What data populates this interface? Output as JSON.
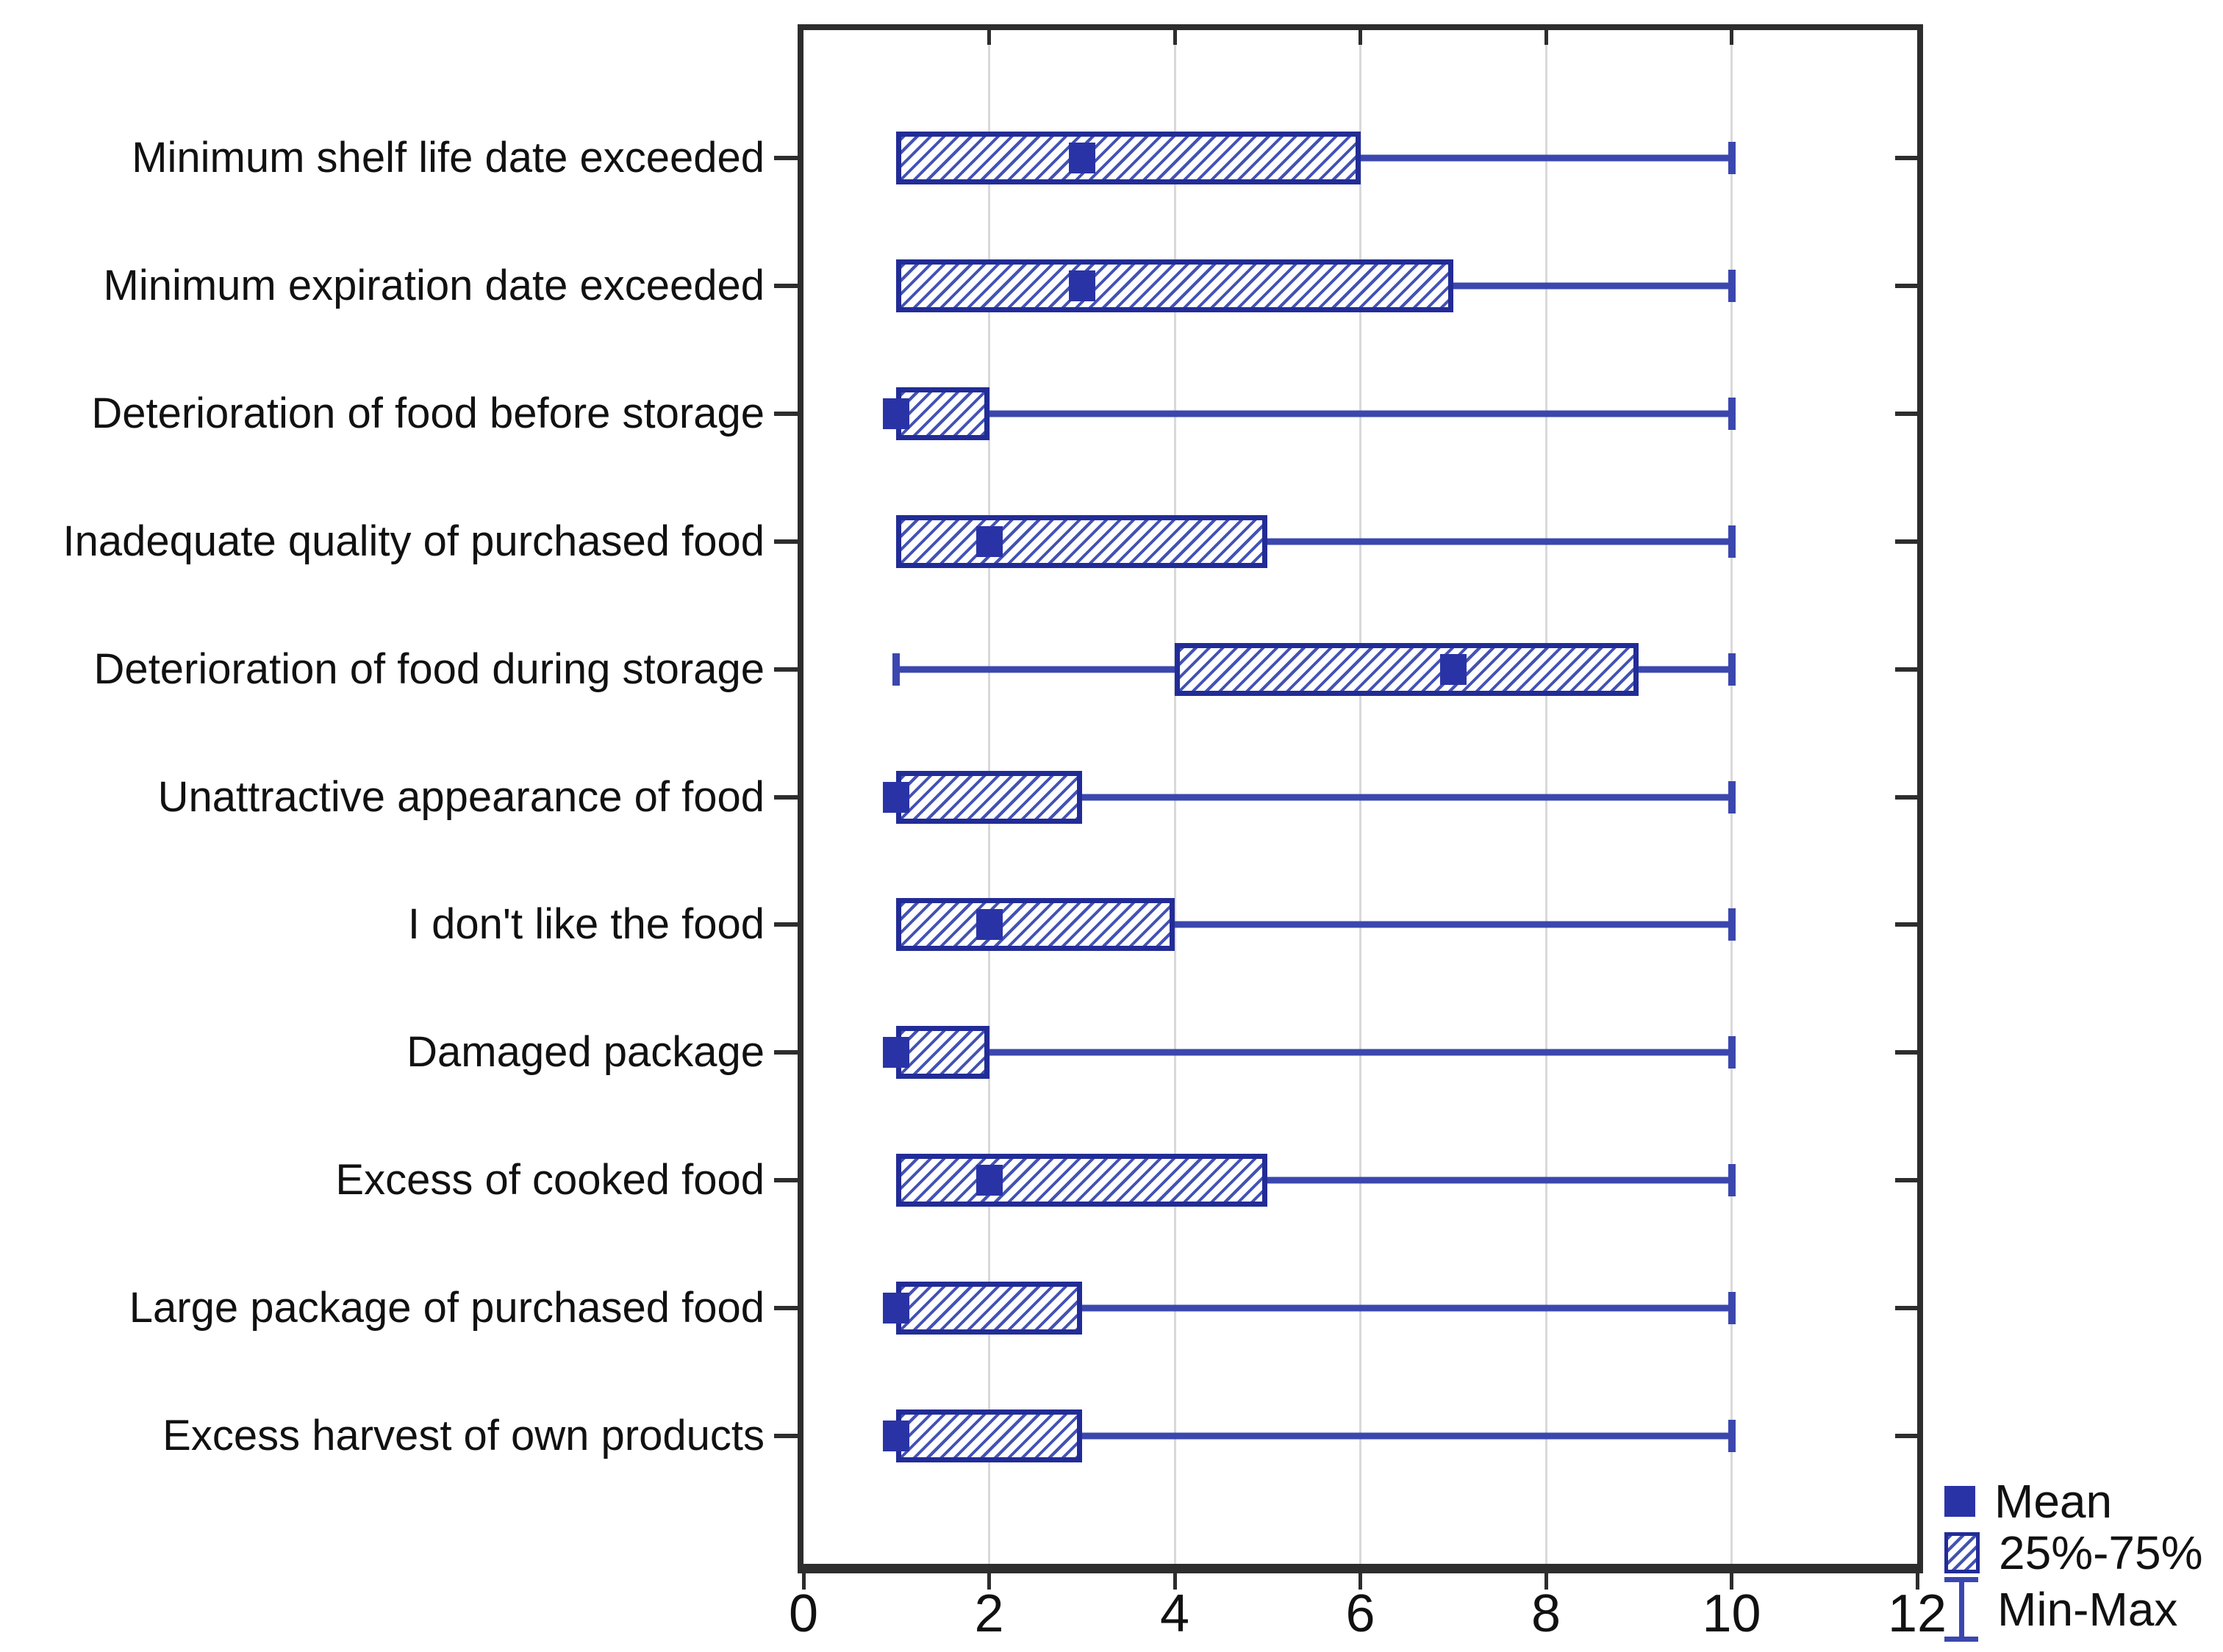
{
  "legend": {
    "mean": "Mean",
    "box": "25%-75%",
    "minmax": "Min-Max"
  },
  "colors": {
    "frame": "#2d2d2d",
    "grid": "#d9d9d9",
    "whisker": "#3b47ae",
    "boxb": "#222c96",
    "hatch": "#4352b4",
    "mean": "#2a33a6",
    "text": "#111111"
  },
  "chart_data": {
    "type": "boxplot",
    "orientation": "horizontal",
    "title": "",
    "xlabel": "",
    "ylabel": "",
    "x_axis": {
      "min": 0,
      "max": 12,
      "ticks": [
        0,
        2,
        4,
        6,
        8,
        10,
        12
      ],
      "gridlines": [
        2,
        4,
        6,
        8,
        10
      ]
    },
    "legend_entries": [
      "Mean",
      "25%-75%",
      "Min-Max"
    ],
    "legend_position": "bottom-right-outside",
    "categories": [
      "Minimum shelf life date exceeded",
      "Minimum expiration date exceeded",
      "Deterioration of food before storage",
      "Inadequate quality of purchased food",
      "Deterioration of food during storage",
      "Unattractive appearance of food",
      "I don't like the food",
      "Damaged package",
      "Excess of cooked food",
      "Large package of purchased food",
      "Excess harvest of own products"
    ],
    "rows": [
      {
        "label": "Minimum shelf life date exceeded",
        "min": 1,
        "q1": 1,
        "mean": 3,
        "q3": 6,
        "max": 10
      },
      {
        "label": "Minimum expiration date exceeded",
        "min": 1,
        "q1": 1,
        "mean": 3,
        "q3": 7,
        "max": 10
      },
      {
        "label": "Deterioration of food before storage",
        "min": 1,
        "q1": 1,
        "mean": 1,
        "q3": 2,
        "max": 10
      },
      {
        "label": "Inadequate quality of purchased food",
        "min": 1,
        "q1": 1,
        "mean": 2,
        "q3": 5,
        "max": 10
      },
      {
        "label": "Deterioration of food during storage",
        "min": 1,
        "q1": 4,
        "mean": 7,
        "q3": 9,
        "max": 10
      },
      {
        "label": "Unattractive appearance of food",
        "min": 1,
        "q1": 1,
        "mean": 1,
        "q3": 3,
        "max": 10
      },
      {
        "label": "I don't like the food",
        "min": 1,
        "q1": 1,
        "mean": 2,
        "q3": 4,
        "max": 10
      },
      {
        "label": "Damaged package",
        "min": 1,
        "q1": 1,
        "mean": 1,
        "q3": 2,
        "max": 10
      },
      {
        "label": "Excess of cooked food",
        "min": 1,
        "q1": 1,
        "mean": 2,
        "q3": 5,
        "max": 10
      },
      {
        "label": "Large package of purchased food",
        "min": 1,
        "q1": 1,
        "mean": 1,
        "q3": 3,
        "max": 10
      },
      {
        "label": "Excess harvest of own products",
        "min": 1,
        "q1": 1,
        "mean": 1,
        "q3": 3,
        "max": 10
      }
    ]
  }
}
